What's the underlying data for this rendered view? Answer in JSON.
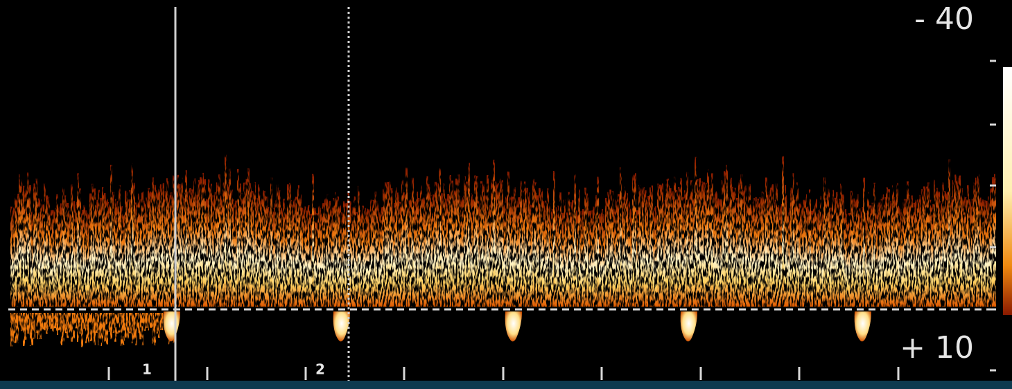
{
  "scale": {
    "top": "- 40",
    "bottom": "+ 10"
  },
  "markers": [
    "1",
    "2"
  ]
}
